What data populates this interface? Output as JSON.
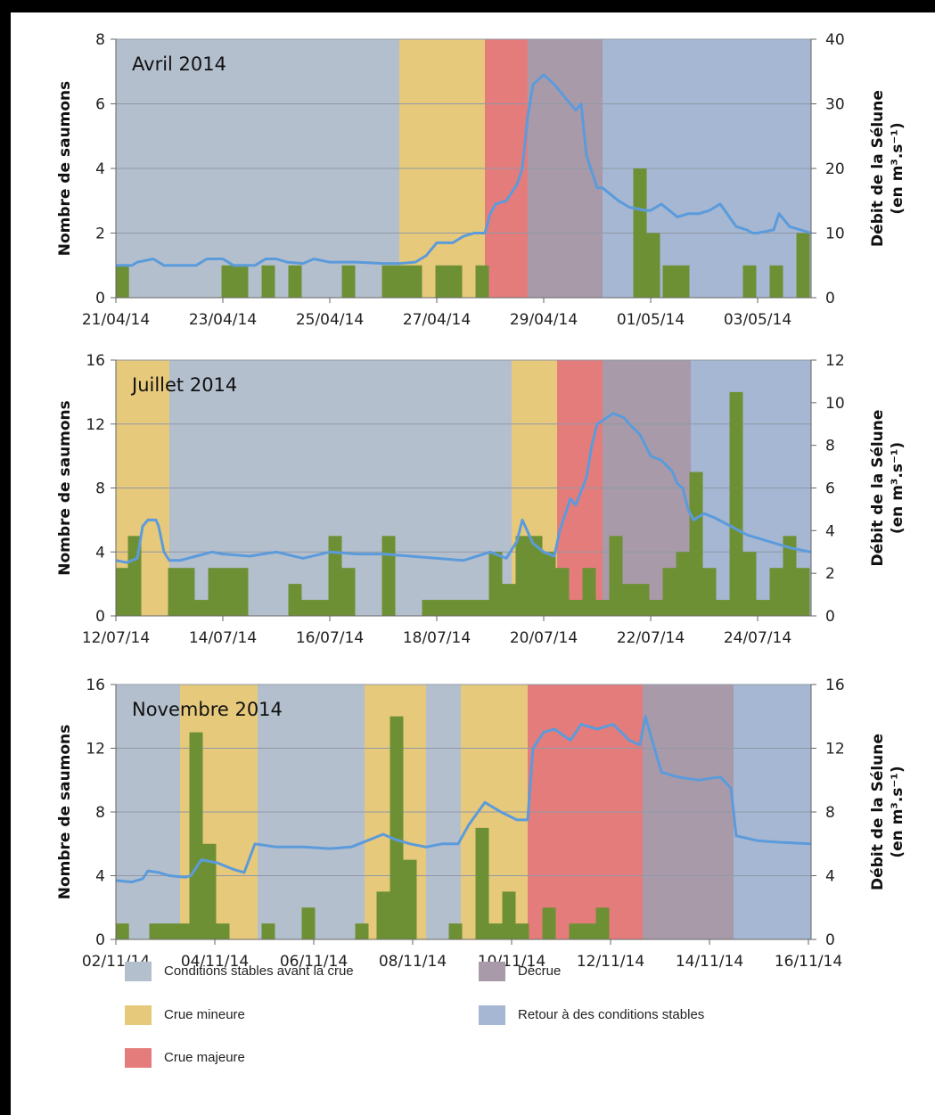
{
  "phase_colors": {
    "stable_before": "#b4bfce",
    "minor": "#e7c97c",
    "major": "#e57c7c",
    "decrue": "#a99aaa",
    "return": "#a5b7d3"
  },
  "bar_color": "#6e9035",
  "line_color": "#5b9bdb",
  "legend": [
    {
      "phase": "stable_before",
      "label": "Conditions stables avant la crue"
    },
    {
      "phase": "decrue",
      "label": "Décrue"
    },
    {
      "phase": "minor",
      "label": "Crue mineure"
    },
    {
      "phase": "return",
      "label": "Retour à des conditions stables"
    },
    {
      "phase": "major",
      "label": "Crue majeure"
    }
  ],
  "chart_data": [
    {
      "type": "bar",
      "title": "Avril 2014",
      "ylabel": "Nombre de saumons",
      "y2label": [
        "Débit de la Sélune",
        "(en m³.s⁻¹)"
      ],
      "ylim": [
        0,
        8
      ],
      "yticks": [
        0,
        2,
        4,
        6,
        8
      ],
      "y2lim": [
        0,
        40
      ],
      "y2ticks": [
        0,
        10,
        20,
        30,
        40
      ],
      "xlim": [
        0,
        13
      ],
      "xtick_labels": [
        "21/04/14",
        "23/04/14",
        "25/04/14",
        "27/04/14",
        "29/04/14",
        "01/05/14",
        "03/05/14"
      ],
      "xtick_pos": [
        0,
        2,
        4,
        6,
        8,
        10,
        12
      ],
      "bar_width": 0.25,
      "phases": [
        {
          "phase": "stable_before",
          "start": 0,
          "end": 5.3
        },
        {
          "phase": "minor",
          "start": 5.3,
          "end": 6.9
        },
        {
          "phase": "major",
          "start": 6.9,
          "end": 7.7
        },
        {
          "phase": "decrue",
          "start": 7.7,
          "end": 9.1
        },
        {
          "phase": "return",
          "start": 9.1,
          "end": 13
        }
      ],
      "series": [
        {
          "name": "Nombre de saumons",
          "type": "bar",
          "x": [
            0.12,
            2.1,
            2.35,
            2.85,
            3.35,
            4.35,
            5.1,
            5.35,
            5.6,
            6.1,
            6.35,
            6.85,
            9.8,
            10.05,
            10.35,
            10.6,
            11.85,
            12.35,
            12.85
          ],
          "values": [
            1,
            1,
            1,
            1,
            1,
            1,
            1,
            1,
            1,
            1,
            1,
            1,
            4,
            2,
            1,
            1,
            1,
            1,
            2
          ]
        },
        {
          "name": "Débit de la Sélune",
          "type": "line",
          "axis": "right",
          "x": [
            0,
            0.3,
            0.4,
            0.7,
            0.9,
            1.5,
            1.7,
            2,
            2.2,
            2.6,
            2.8,
            3.0,
            3.2,
            3.5,
            3.7,
            4,
            4.5,
            5,
            5.3,
            5.6,
            5.8,
            6.0,
            6.3,
            6.5,
            6.7,
            6.9,
            7.0,
            7.1,
            7.3,
            7.5,
            7.6,
            7.7,
            7.8,
            8.0,
            8.2,
            8.4,
            8.6,
            8.7,
            8.8,
            9.0,
            9.1,
            9.4,
            9.6,
            9.9,
            10.0,
            10.2,
            10.5,
            10.7,
            10.9,
            11.1,
            11.3,
            11.6,
            11.8,
            11.9,
            12.0,
            12.3,
            12.4,
            12.6,
            13.0
          ],
          "values": [
            5,
            5,
            5.5,
            6,
            5,
            5,
            6,
            6,
            5,
            5,
            6,
            6,
            5.5,
            5.3,
            6,
            5.5,
            5.5,
            5.3,
            5.3,
            5.5,
            6.5,
            8.5,
            8.5,
            9.5,
            10,
            10,
            13,
            14.5,
            15,
            17.5,
            20,
            28,
            33,
            34.5,
            33,
            31,
            29,
            30,
            22,
            17,
            17,
            15,
            14,
            13.5,
            13.5,
            14.5,
            12.5,
            13,
            13,
            13.5,
            14.5,
            11,
            10.5,
            10,
            10,
            10.5,
            13,
            11,
            10
          ]
        }
      ]
    },
    {
      "type": "bar",
      "title": "Juillet 2014",
      "ylabel": "Nombre de saumons",
      "y2label": [
        "Débit de la Sélune",
        "(en m³.s⁻¹)"
      ],
      "ylim": [
        0,
        16
      ],
      "yticks": [
        0,
        4,
        8,
        12,
        16
      ],
      "y2lim": [
        0,
        12
      ],
      "y2ticks": [
        0,
        2,
        4,
        6,
        8,
        10,
        12
      ],
      "xlim": [
        0,
        13
      ],
      "xtick_labels": [
        "12/07/14",
        "14/07/14",
        "16/07/14",
        "18/07/14",
        "20/07/14",
        "22/07/14",
        "24/07/14"
      ],
      "xtick_pos": [
        0,
        2,
        4,
        6,
        8,
        10,
        12
      ],
      "bar_width": 0.25,
      "phases": [
        {
          "phase": "minor",
          "start": 0,
          "end": 1.0
        },
        {
          "phase": "stable_before",
          "start": 1.0,
          "end": 7.4
        },
        {
          "phase": "minor",
          "start": 7.4,
          "end": 8.25
        },
        {
          "phase": "major",
          "start": 8.25,
          "end": 9.1
        },
        {
          "phase": "decrue",
          "start": 9.1,
          "end": 10.75
        },
        {
          "phase": "return",
          "start": 10.75,
          "end": 13
        }
      ],
      "series": [
        {
          "name": "Nombre de saumons",
          "type": "bar",
          "x": [
            0.12,
            0.35,
            1.1,
            1.35,
            1.6,
            1.85,
            2.1,
            2.35,
            3.35,
            3.6,
            3.85,
            4.1,
            4.35,
            5.1,
            5.85,
            6.1,
            6.35,
            6.6,
            6.85,
            7.1,
            7.35,
            7.6,
            7.85,
            8.1,
            8.35,
            8.6,
            8.85,
            9.1,
            9.35,
            9.6,
            9.85,
            10.1,
            10.35,
            10.6,
            10.85,
            11.1,
            11.35,
            11.6,
            11.85,
            12.1,
            12.35,
            12.6,
            12.85
          ],
          "values": [
            3,
            5,
            3,
            3,
            1,
            3,
            3,
            3,
            2,
            1,
            1,
            5,
            3,
            5,
            1,
            1,
            1,
            1,
            1,
            4,
            2,
            5,
            5,
            4,
            3,
            1,
            3,
            1,
            5,
            2,
            2,
            1,
            3,
            4,
            9,
            3,
            1,
            14,
            4,
            1,
            3,
            5,
            3
          ]
        },
        {
          "name": "Débit de la Sélune",
          "type": "line",
          "axis": "right",
          "x": [
            0,
            0.2,
            0.3,
            0.4,
            0.5,
            0.6,
            0.75,
            0.8,
            0.9,
            1.0,
            1.2,
            1.5,
            1.8,
            2.0,
            2.5,
            3.0,
            3.5,
            4.0,
            4.5,
            5.0,
            5.5,
            6.0,
            6.5,
            7.0,
            7.3,
            7.5,
            7.6,
            7.8,
            8.0,
            8.2,
            8.3,
            8.5,
            8.6,
            8.8,
            8.9,
            9.0,
            9.3,
            9.5,
            9.6,
            9.8,
            10.0,
            10.2,
            10.4,
            10.5,
            10.6,
            10.7,
            10.8,
            11.0,
            11.2,
            11.5,
            11.8,
            12.2,
            12.6,
            13.0
          ],
          "values": [
            2.6,
            2.5,
            2.6,
            2.7,
            4.2,
            4.5,
            4.5,
            4.2,
            3.0,
            2.6,
            2.6,
            2.8,
            3.0,
            2.9,
            2.8,
            3.0,
            2.7,
            3.0,
            2.9,
            2.9,
            2.8,
            2.7,
            2.6,
            3.0,
            2.7,
            3.5,
            4.5,
            3.4,
            3.0,
            2.8,
            4.0,
            5.5,
            5.2,
            6.5,
            8.0,
            9.0,
            9.5,
            9.3,
            9.0,
            8.5,
            7.5,
            7.3,
            6.8,
            6.2,
            6.0,
            5.0,
            4.5,
            4.8,
            4.6,
            4.2,
            3.8,
            3.5,
            3.2,
            3.0
          ]
        }
      ]
    },
    {
      "type": "bar",
      "title": "Novembre 2014",
      "ylabel": "Nombre de saumons",
      "y2label": [
        "Débit de la Sélune",
        "(en m³.s⁻¹)"
      ],
      "ylim": [
        0,
        16
      ],
      "yticks": [
        0,
        4,
        8,
        12,
        16
      ],
      "y2lim": [
        0,
        16
      ],
      "y2ticks": [
        0,
        4,
        8,
        12,
        16
      ],
      "xlim": [
        0,
        13
      ],
      "xtick_labels": [
        "02/11/14",
        "04/11/14",
        "06/11/14",
        "08/11/14",
        "10/11/14",
        "12/11/14",
        "14/11/14",
        "16/11/14"
      ],
      "xtick_pos": [
        0,
        1.85,
        3.7,
        5.55,
        7.4,
        9.25,
        11.1,
        12.95
      ],
      "bar_width": 0.25,
      "phases": [
        {
          "phase": "stable_before",
          "start": 0,
          "end": 1.2
        },
        {
          "phase": "minor",
          "start": 1.2,
          "end": 2.65
        },
        {
          "phase": "stable_before",
          "start": 2.65,
          "end": 4.65
        },
        {
          "phase": "minor",
          "start": 4.65,
          "end": 5.8
        },
        {
          "phase": "stable_before",
          "start": 5.8,
          "end": 6.45
        },
        {
          "phase": "minor",
          "start": 6.45,
          "end": 7.7
        },
        {
          "phase": "major",
          "start": 7.7,
          "end": 9.85
        },
        {
          "phase": "decrue",
          "start": 9.85,
          "end": 11.55
        },
        {
          "phase": "return",
          "start": 11.55,
          "end": 13
        }
      ],
      "series": [
        {
          "name": "Nombre de saumons",
          "type": "bar",
          "x": [
            0.12,
            0.75,
            1.0,
            1.25,
            1.5,
            1.75,
            2.0,
            2.85,
            3.6,
            4.6,
            5.0,
            5.25,
            5.5,
            6.35,
            6.85,
            7.1,
            7.35,
            7.6,
            8.1,
            8.6,
            8.85,
            9.1
          ],
          "values": [
            1,
            1,
            1,
            1,
            13,
            6,
            1,
            1,
            2,
            1,
            3,
            14,
            5,
            1,
            7,
            1,
            3,
            1,
            2,
            1,
            1,
            2
          ]
        },
        {
          "name": "Débit de la Sélune",
          "type": "line",
          "axis": "right",
          "x": [
            0,
            0.3,
            0.5,
            0.6,
            0.8,
            1.0,
            1.3,
            1.4,
            1.6,
            1.9,
            2.2,
            2.4,
            2.6,
            3.0,
            3.5,
            4.0,
            4.4,
            4.7,
            5.0,
            5.2,
            5.5,
            5.8,
            6.1,
            6.4,
            6.6,
            6.9,
            7.2,
            7.5,
            7.7,
            7.8,
            8.0,
            8.2,
            8.5,
            8.7,
            9.0,
            9.3,
            9.6,
            9.8,
            9.9,
            10.2,
            10.5,
            10.9,
            11.3,
            11.5,
            11.6,
            12.0,
            12.4,
            13.0
          ],
          "values": [
            3.7,
            3.6,
            3.8,
            4.3,
            4.2,
            4.0,
            3.9,
            4.0,
            5.0,
            4.8,
            4.4,
            4.2,
            6.0,
            5.8,
            5.8,
            5.7,
            5.8,
            6.2,
            6.6,
            6.3,
            6.0,
            5.8,
            6.0,
            6.0,
            7.2,
            8.6,
            8.0,
            7.5,
            7.5,
            12.0,
            13.0,
            13.2,
            12.5,
            13.5,
            13.2,
            13.5,
            12.5,
            12.2,
            14.0,
            10.5,
            10.2,
            10.0,
            10.2,
            9.5,
            6.5,
            6.2,
            6.1,
            6.0
          ]
        }
      ]
    }
  ]
}
